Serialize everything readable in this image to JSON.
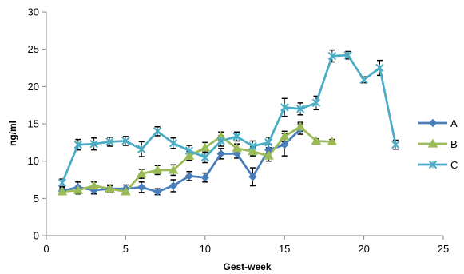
{
  "chart_data": {
    "type": "line",
    "title": "",
    "xlabel": "Gest-week",
    "ylabel": "ng/ml",
    "xlim": [
      0,
      25
    ],
    "ylim": [
      0,
      30
    ],
    "xticks": [
      0,
      5,
      10,
      15,
      20,
      25
    ],
    "yticks": [
      0,
      5,
      10,
      15,
      20,
      25,
      30
    ],
    "grid": false,
    "legend_position": "right",
    "error_bars": true,
    "series": [
      {
        "name": "A",
        "color": "#4A7EBB",
        "marker": "diamond",
        "x": [
          1,
          2,
          3,
          4,
          5,
          6,
          7,
          8,
          9,
          10,
          11,
          12,
          13,
          14,
          15,
          16
        ],
        "y": [
          6.0,
          6.5,
          6.1,
          6.3,
          6.3,
          6.5,
          5.9,
          6.7,
          8.0,
          7.8,
          11.0,
          11.0,
          7.9,
          11.5,
          12.2,
          14.3
        ],
        "err": [
          0.5,
          0.7,
          0.5,
          0.5,
          0.5,
          0.7,
          0.4,
          0.8,
          0.6,
          0.6,
          0.7,
          0.6,
          1.2,
          0.8,
          1.5,
          0.7
        ]
      },
      {
        "name": "B",
        "color": "#9BBB59",
        "marker": "triangle",
        "x": [
          1,
          2,
          3,
          4,
          5,
          6,
          7,
          8,
          9,
          10,
          11,
          12,
          13,
          14,
          15,
          16,
          17,
          18
        ],
        "y": [
          5.9,
          6.1,
          6.7,
          6.3,
          5.9,
          8.3,
          8.8,
          8.8,
          10.7,
          11.8,
          13.3,
          11.7,
          11.3,
          10.7,
          13.3,
          14.6,
          12.7,
          12.6
        ],
        "err": [
          0.4,
          0.5,
          0.5,
          0.4,
          0.4,
          0.6,
          0.6,
          0.7,
          0.6,
          0.7,
          0.6,
          0.6,
          0.6,
          0.7,
          0.7,
          0.6,
          0.3,
          0.3
        ]
      },
      {
        "name": "C",
        "color": "#4BACC6",
        "marker": "x",
        "x": [
          1,
          2,
          3,
          4,
          5,
          6,
          7,
          8,
          9,
          10,
          11,
          12,
          13,
          14,
          15,
          16,
          17,
          18,
          19,
          20,
          21,
          22
        ],
        "y": [
          7.1,
          12.2,
          12.3,
          12.6,
          12.7,
          11.6,
          14.0,
          12.4,
          11.4,
          10.5,
          12.7,
          13.3,
          12.0,
          12.5,
          17.2,
          17.0,
          17.8,
          24.1,
          24.2,
          20.9,
          22.5,
          12.2
        ],
        "err": [
          0.5,
          0.7,
          0.8,
          0.6,
          0.6,
          1.0,
          0.6,
          0.7,
          0.7,
          0.7,
          0.7,
          0.6,
          0.7,
          0.7,
          1.2,
          0.8,
          0.9,
          0.8,
          0.5,
          0.4,
          1.0,
          0.6
        ]
      }
    ]
  }
}
